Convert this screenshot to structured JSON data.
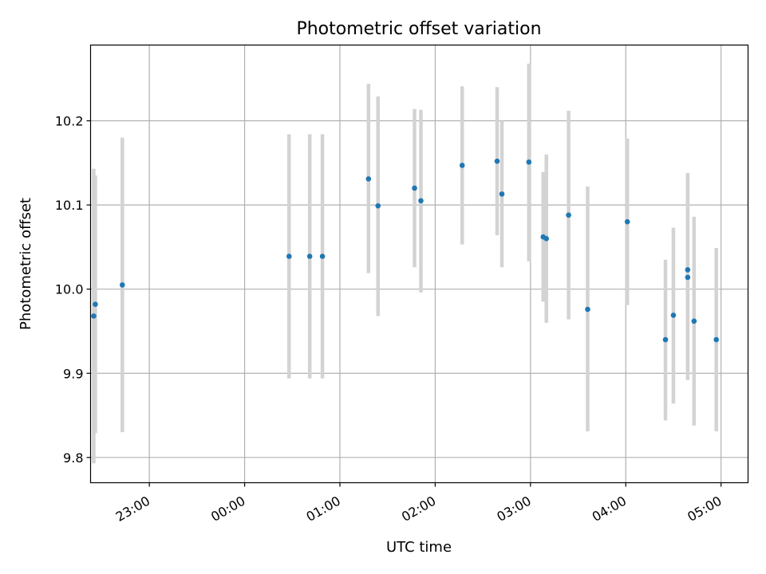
{
  "chart_data": {
    "type": "scatter",
    "title": "Photometric offset variation",
    "xlabel": "UTC time",
    "ylabel": "Photometric offset",
    "x_axis": {
      "kind": "time",
      "range": [
        "22:23",
        "05:17"
      ],
      "ticks": [
        "23:00",
        "00:00",
        "01:00",
        "02:00",
        "03:00",
        "04:00",
        "05:00"
      ]
    },
    "y_axis": {
      "range": [
        9.77,
        10.29
      ],
      "ticks": [
        "9.8",
        "9.9",
        "10.0",
        "10.1",
        "10.2"
      ]
    },
    "grid": true,
    "colors": {
      "point": "#1f77b4",
      "errorbar": "#d3d3d3"
    },
    "points": [
      {
        "x": "22:25",
        "y": 9.968,
        "low": 9.793,
        "high": 10.143
      },
      {
        "x": "22:26",
        "y": 9.982,
        "low": 9.829,
        "high": 10.135
      },
      {
        "x": "22:43",
        "y": 10.005,
        "low": 9.83,
        "high": 10.18
      },
      {
        "x": "00:28",
        "y": 10.039,
        "low": 9.894,
        "high": 10.184
      },
      {
        "x": "00:41",
        "y": 10.039,
        "low": 9.894,
        "high": 10.184
      },
      {
        "x": "00:49",
        "y": 10.039,
        "low": 9.894,
        "high": 10.184
      },
      {
        "x": "01:18",
        "y": 10.131,
        "low": 10.019,
        "high": 10.244
      },
      {
        "x": "01:24",
        "y": 10.099,
        "low": 9.968,
        "high": 10.229
      },
      {
        "x": "01:47",
        "y": 10.12,
        "low": 10.026,
        "high": 10.214
      },
      {
        "x": "01:51",
        "y": 10.105,
        "low": 9.996,
        "high": 10.213
      },
      {
        "x": "02:17",
        "y": 10.147,
        "low": 10.053,
        "high": 10.241
      },
      {
        "x": "02:39",
        "y": 10.152,
        "low": 10.064,
        "high": 10.24
      },
      {
        "x": "02:42",
        "y": 10.113,
        "low": 10.026,
        "high": 10.2
      },
      {
        "x": "02:59",
        "y": 10.151,
        "low": 10.033,
        "high": 10.268
      },
      {
        "x": "03:08",
        "y": 10.062,
        "low": 9.985,
        "high": 10.139
      },
      {
        "x": "03:10",
        "y": 10.06,
        "low": 9.96,
        "high": 10.16
      },
      {
        "x": "03:24",
        "y": 10.088,
        "low": 9.964,
        "high": 10.212
      },
      {
        "x": "03:36",
        "y": 9.976,
        "low": 9.831,
        "high": 10.122
      },
      {
        "x": "04:01",
        "y": 10.08,
        "low": 9.981,
        "high": 10.179
      },
      {
        "x": "04:25",
        "y": 9.94,
        "low": 9.844,
        "high": 10.035
      },
      {
        "x": "04:30",
        "y": 9.969,
        "low": 9.864,
        "high": 10.073
      },
      {
        "x": "04:39",
        "y": 10.023,
        "low": 9.908,
        "high": 10.138
      },
      {
        "x": "04:39",
        "y": 10.014,
        "low": 9.892,
        "high": 10.135
      },
      {
        "x": "04:43",
        "y": 9.962,
        "low": 9.838,
        "high": 10.086
      },
      {
        "x": "04:57",
        "y": 9.94,
        "low": 9.831,
        "high": 10.049
      }
    ]
  }
}
